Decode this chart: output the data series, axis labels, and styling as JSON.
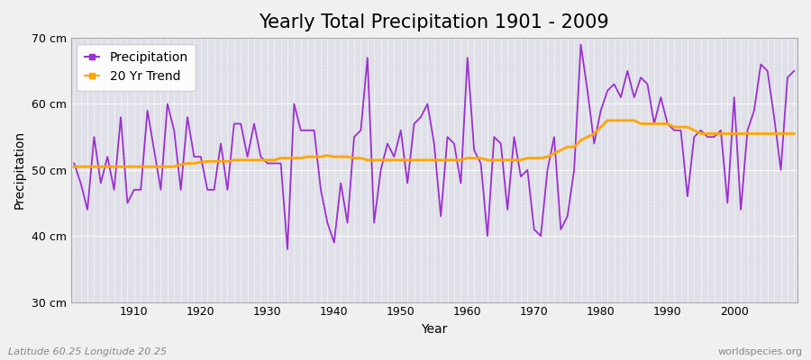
{
  "title": "Yearly Total Precipitation 1901 - 2009",
  "xlabel": "Year",
  "ylabel": "Precipitation",
  "bottom_left_label": "Latitude 60.25 Longitude 20.25",
  "bottom_right_label": "worldspecies.org",
  "years": [
    1901,
    1902,
    1903,
    1904,
    1905,
    1906,
    1907,
    1908,
    1909,
    1910,
    1911,
    1912,
    1913,
    1914,
    1915,
    1916,
    1917,
    1918,
    1919,
    1920,
    1921,
    1922,
    1923,
    1924,
    1925,
    1926,
    1927,
    1928,
    1929,
    1930,
    1931,
    1932,
    1933,
    1934,
    1935,
    1936,
    1937,
    1938,
    1939,
    1940,
    1941,
    1942,
    1943,
    1944,
    1945,
    1946,
    1947,
    1948,
    1949,
    1950,
    1951,
    1952,
    1953,
    1954,
    1955,
    1956,
    1957,
    1958,
    1959,
    1960,
    1961,
    1962,
    1963,
    1964,
    1965,
    1966,
    1967,
    1968,
    1969,
    1970,
    1971,
    1972,
    1973,
    1974,
    1975,
    1976,
    1977,
    1978,
    1979,
    1980,
    1981,
    1982,
    1983,
    1984,
    1985,
    1986,
    1987,
    1988,
    1989,
    1990,
    1991,
    1992,
    1993,
    1994,
    1995,
    1996,
    1997,
    1998,
    1999,
    2000,
    2001,
    2002,
    2003,
    2004,
    2005,
    2006,
    2007,
    2008,
    2009
  ],
  "precipitation": [
    51,
    48,
    44,
    55,
    48,
    52,
    47,
    58,
    45,
    47,
    47,
    59,
    53,
    47,
    60,
    56,
    47,
    58,
    52,
    52,
    47,
    47,
    54,
    47,
    57,
    57,
    52,
    57,
    52,
    51,
    51,
    51,
    38,
    60,
    56,
    56,
    56,
    47,
    42,
    39,
    48,
    42,
    55,
    56,
    67,
    42,
    50,
    54,
    52,
    56,
    48,
    57,
    58,
    60,
    54,
    43,
    55,
    54,
    48,
    67,
    53,
    51,
    40,
    55,
    54,
    44,
    55,
    49,
    50,
    41,
    40,
    50,
    55,
    41,
    43,
    50,
    69,
    62,
    54,
    59,
    62,
    63,
    61,
    65,
    61,
    64,
    63,
    57,
    61,
    57,
    56,
    56,
    46,
    55,
    56,
    55,
    55,
    56,
    45,
    61,
    44,
    56,
    59,
    66,
    65,
    58,
    50,
    64,
    65
  ],
  "trend": [
    50.5,
    50.5,
    50.5,
    50.5,
    50.5,
    50.5,
    50.5,
    50.5,
    50.5,
    50.5,
    50.5,
    50.5,
    50.5,
    50.5,
    50.5,
    50.5,
    50.8,
    51.0,
    51.0,
    51.2,
    51.3,
    51.3,
    51.3,
    51.3,
    51.5,
    51.5,
    51.5,
    51.5,
    51.5,
    51.5,
    51.5,
    51.8,
    51.8,
    51.8,
    51.8,
    52.0,
    52.0,
    52.0,
    52.2,
    52.0,
    52.0,
    52.0,
    51.8,
    51.8,
    51.5,
    51.5,
    51.5,
    51.5,
    51.5,
    51.5,
    51.5,
    51.5,
    51.5,
    51.5,
    51.5,
    51.5,
    51.5,
    51.5,
    51.5,
    51.8,
    51.8,
    51.8,
    51.5,
    51.5,
    51.5,
    51.5,
    51.5,
    51.5,
    51.8,
    51.8,
    51.8,
    52.0,
    52.5,
    53.0,
    53.5,
    53.5,
    54.5,
    55.0,
    55.5,
    56.5,
    57.5,
    57.5,
    57.5,
    57.5,
    57.5,
    57.0,
    57.0,
    57.0,
    57.0,
    57.0,
    56.5,
    56.5,
    56.5,
    56.0,
    55.5,
    55.5,
    55.5,
    55.5,
    55.5,
    55.5,
    55.5,
    55.5,
    55.5,
    55.5,
    55.5,
    55.5,
    55.5,
    55.5,
    55.5
  ],
  "precip_color": "#9b30d0",
  "trend_color": "#FFA500",
  "bg_color": "#f0f0f0",
  "plot_bg_color": "#e0e0e8",
  "grid_color": "#ffffff",
  "ylim": [
    30,
    70
  ],
  "yticks": [
    30,
    40,
    50,
    60,
    70
  ],
  "ytick_labels": [
    "30 cm",
    "40 cm",
    "50 cm",
    "60 cm",
    "70 cm"
  ],
  "xticks": [
    1910,
    1920,
    1930,
    1940,
    1950,
    1960,
    1970,
    1980,
    1990,
    2000
  ],
  "title_fontsize": 15,
  "label_fontsize": 10,
  "tick_fontsize": 9
}
